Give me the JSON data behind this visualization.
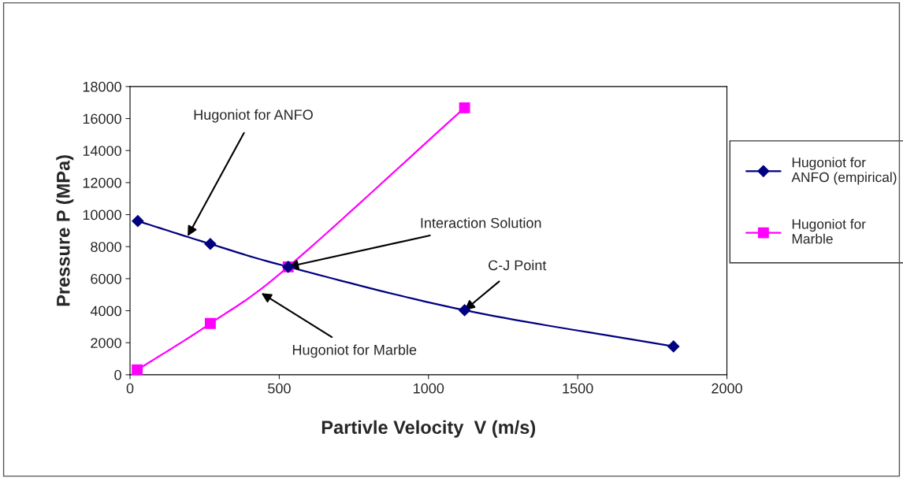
{
  "chart_data": {
    "type": "line",
    "xlabel": "Partivle Velocity  V (m/s)",
    "ylabel": "Pressure P (MPa)",
    "series": [
      {
        "name": "Hugoniot for\nANFO (empirical)",
        "color": "#000080",
        "marker": "diamond",
        "x": [
          26,
          269,
          530,
          1121,
          1821
        ],
        "values": [
          9600,
          8170,
          6740,
          4030,
          1770
        ]
      },
      {
        "name": "Hugoniot for\nMarble",
        "color": "#ff00ff",
        "marker": "square",
        "x": [
          24,
          269,
          530,
          1121
        ],
        "values": [
          300,
          3200,
          6740,
          16670
        ]
      }
    ],
    "xlim": [
      0,
      2000
    ],
    "xticks": [
      0,
      500,
      1000,
      1500,
      2000
    ],
    "ylim": [
      0,
      18000
    ],
    "yticks": [
      0,
      2000,
      4000,
      6000,
      8000,
      10000,
      12000,
      14000,
      16000,
      18000
    ],
    "grid": false,
    "legend": "right",
    "line_style": "solid",
    "annotations": [
      {
        "text": "Hugoniot for ANFO",
        "x": 193,
        "y": 8650
      },
      {
        "text": "Interaction Solution",
        "x": 530,
        "y": 6740
      },
      {
        "text": "C-J Point",
        "x": 1121,
        "y": 4030
      },
      {
        "text": "Hugoniot for Marble",
        "x": 440,
        "y": 5100
      }
    ]
  }
}
